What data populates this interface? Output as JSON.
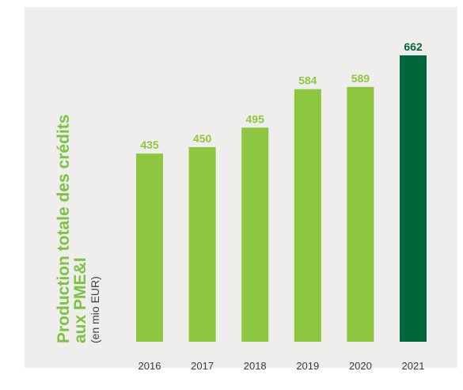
{
  "chart_data": {
    "type": "bar",
    "title": "Production totale des crédits aux PME&I",
    "title_lines": [
      "Production totale des crédits",
      "aux PME&I"
    ],
    "unit": "(en mio EUR)",
    "categories": [
      "2016",
      "2017",
      "2018",
      "2019",
      "2020",
      "2021"
    ],
    "values": [
      435,
      450,
      495,
      584,
      589,
      662
    ],
    "value_labels": [
      "435",
      "450",
      "495",
      "584",
      "589",
      "662"
    ],
    "highlight_category": "2021",
    "ylim": [
      0,
      662
    ],
    "grid": false,
    "colors": {
      "bar": "#8dc63f",
      "highlight_bar": "#00673c",
      "label": "#8dc63f",
      "highlight_label": "#00673c",
      "title": "#7cc243",
      "panel": "#efeeec"
    }
  }
}
